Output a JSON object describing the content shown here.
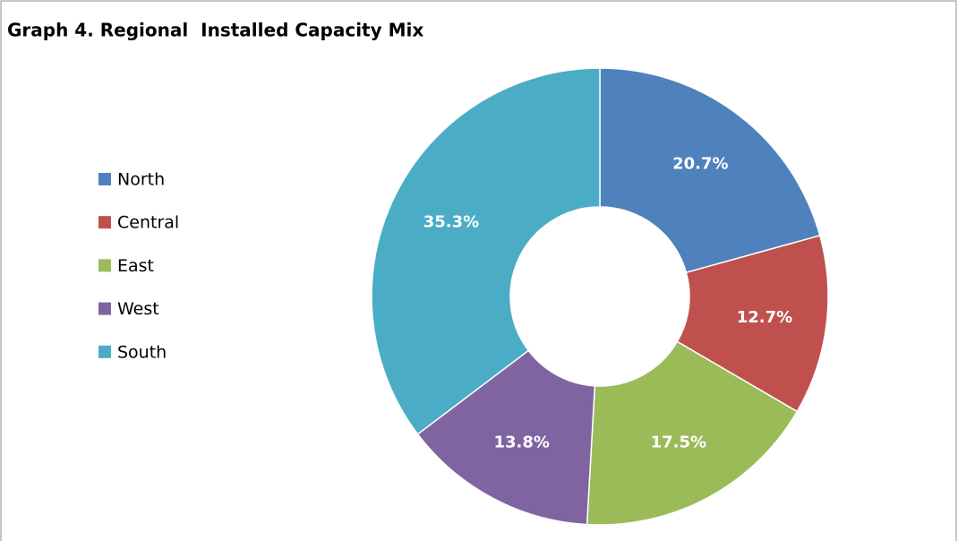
{
  "chart_data": {
    "type": "donut",
    "title": "Graph 4. Regional  Installed Capacity Mix",
    "categories": [
      "North",
      "Central",
      "East",
      "West",
      "South"
    ],
    "values": [
      20.7,
      12.7,
      17.5,
      13.8,
      35.3
    ],
    "value_labels": [
      "20.7%",
      "12.7%",
      "17.5%",
      "13.8%",
      "35.3%"
    ],
    "colors": [
      "#4f81bd",
      "#c0504d",
      "#9bbb59",
      "#8064a2",
      "#4bacc6"
    ],
    "legend": "left"
  }
}
